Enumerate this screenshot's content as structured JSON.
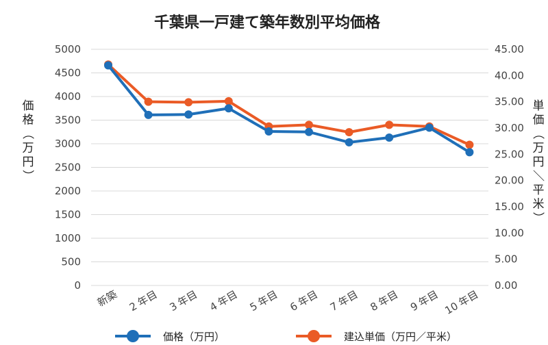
{
  "chart_data": {
    "type": "line",
    "title": "千葉県一戸建て築年数別平均価格",
    "categories": [
      "新築",
      "2年目",
      "3年目",
      "4年目",
      "5年目",
      "6年目",
      "7年目",
      "8年目",
      "9年目",
      "10年目"
    ],
    "category_parts": [
      {
        "num": "",
        "unit": "新築"
      },
      {
        "num": "2",
        "unit": "年目"
      },
      {
        "num": "3",
        "unit": "年目"
      },
      {
        "num": "4",
        "unit": "年目"
      },
      {
        "num": "5",
        "unit": "年目"
      },
      {
        "num": "6",
        "unit": "年目"
      },
      {
        "num": "7",
        "unit": "年目"
      },
      {
        "num": "8",
        "unit": "年目"
      },
      {
        "num": "9",
        "unit": "年目"
      },
      {
        "num": "10",
        "unit": "年目"
      }
    ],
    "y_left": {
      "label_chars": [
        "価",
        "格",
        "（",
        "万",
        "円",
        "）"
      ],
      "ylim": [
        0,
        5000
      ],
      "ticks": [
        "0",
        "500",
        "1000",
        "1500",
        "2000",
        "2500",
        "3000",
        "3500",
        "4000",
        "4500",
        "5000"
      ]
    },
    "y_right": {
      "label_chars": [
        "単",
        "価",
        "（",
        "万",
        "円",
        "／",
        "平",
        "米",
        "）"
      ],
      "ylim": [
        0,
        45
      ],
      "ticks": [
        "0.00",
        "5.00",
        "10.00",
        "15.00",
        "20.00",
        "25.00",
        "30.00",
        "35.00",
        "40.00",
        "45.00"
      ]
    },
    "series": [
      {
        "name": "価格（万円）",
        "axis": "left",
        "color": "#1f6fb8",
        "values": [
          4660,
          3610,
          3620,
          3750,
          3260,
          3250,
          3030,
          3130,
          3340,
          2820
        ]
      },
      {
        "name": "建込単価（万円／平米）",
        "axis": "right",
        "color": "#ea5b26",
        "values": [
          42.1,
          35.0,
          34.9,
          35.1,
          30.3,
          30.6,
          29.2,
          30.6,
          30.3,
          26.8
        ]
      }
    ],
    "grid": true,
    "legend_position": "bottom"
  }
}
